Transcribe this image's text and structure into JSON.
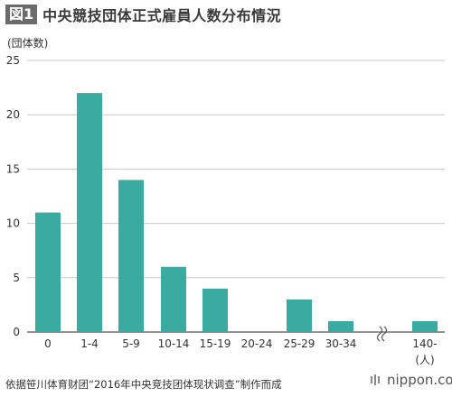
{
  "header": {
    "badge": "図1",
    "title": "中央競技団体正式雇員人数分布情況"
  },
  "chart_data": {
    "type": "bar",
    "ylabel": "(団体数)",
    "xlabel": "",
    "ylim": [
      0,
      25
    ],
    "yticks": [
      "0",
      "5",
      "10",
      "15",
      "20",
      "25"
    ],
    "categories": [
      "0",
      "1-4",
      "5-9",
      "10-14",
      "15-19",
      "20-24",
      "25-29",
      "30-34",
      "140-"
    ],
    "values": [
      11,
      22,
      14,
      6,
      4,
      0,
      3,
      1,
      1
    ],
    "axis_break_after": "30-34",
    "unit_note": "(人)",
    "grid": true,
    "bar_color": "#3aaba0"
  },
  "footer": {
    "source": "依据笹川体育财团“2016年中央竞技团体现状调查”制作而成",
    "logo_text": "nippon.com"
  }
}
